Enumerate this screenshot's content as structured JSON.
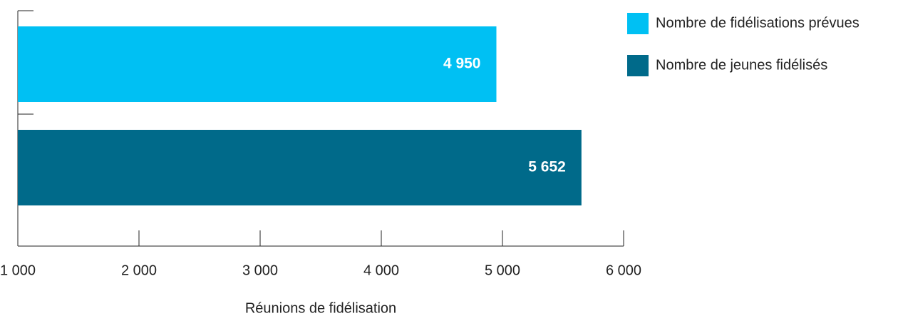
{
  "chart_data": {
    "type": "bar",
    "orientation": "horizontal",
    "series": [
      {
        "name": "Nombre de fidélisations prévues",
        "color": "#00c0f3",
        "values": [
          4950
        ],
        "value_labels": [
          "4 950"
        ]
      },
      {
        "name": "Nombre de jeunes fidélisés",
        "color": "#006a8a",
        "values": [
          5652
        ],
        "value_labels": [
          "5 652"
        ]
      }
    ],
    "xlim": [
      1000,
      6000
    ],
    "xticks": [
      {
        "value": 1000,
        "label": "1 000"
      },
      {
        "value": 2000,
        "label": "2 000"
      },
      {
        "value": 3000,
        "label": "3 000"
      },
      {
        "value": 4000,
        "label": "4 000"
      },
      {
        "value": 5000,
        "label": "5 000"
      },
      {
        "value": 6000,
        "label": "6 000"
      }
    ],
    "xlabel": "Réunions de fidélisation",
    "legend": "top-right"
  }
}
